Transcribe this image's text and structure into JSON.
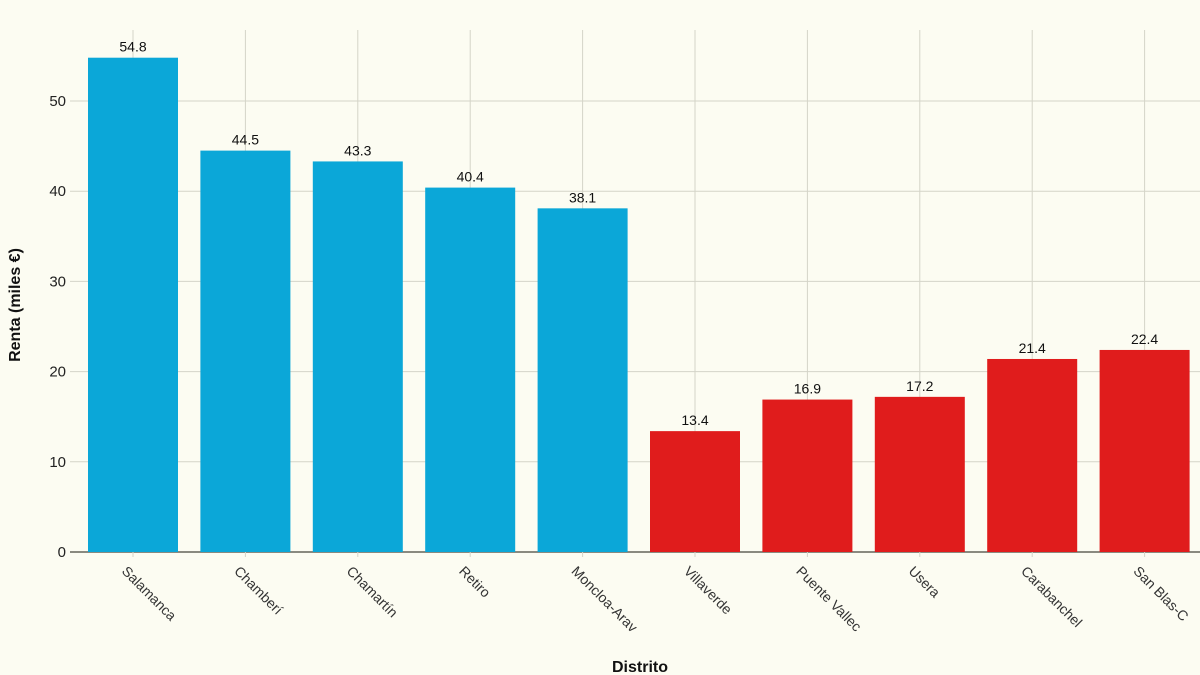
{
  "chart_data": {
    "type": "bar",
    "title": "",
    "xlabel": "Distrito",
    "ylabel": "Renta (miles €)",
    "ylim": [
      0,
      55
    ],
    "yticks": [
      0,
      10,
      20,
      30,
      40,
      50
    ],
    "grid": true,
    "categories": [
      "Salamanca",
      "Chamberí",
      "Chamartín",
      "Retiro",
      "Moncloa-Arav",
      "Villaverde",
      "Puente Vallec",
      "Usera",
      "Carabanchel",
      "San Blas-C"
    ],
    "values": [
      54.8,
      44.5,
      43.3,
      40.4,
      38.1,
      13.4,
      16.9,
      17.2,
      21.4,
      22.4
    ],
    "value_labels": [
      "54.8",
      "44.5",
      "43.3",
      "40.4",
      "38.1",
      "13.4",
      "16.9",
      "17.2",
      "21.4",
      "22.4"
    ],
    "bar_colors": [
      "#0ba7d8",
      "#0ba7d8",
      "#0ba7d8",
      "#0ba7d8",
      "#0ba7d8",
      "#e01c1c",
      "#e01c1c",
      "#e01c1c",
      "#e01c1c",
      "#e01c1c"
    ]
  }
}
